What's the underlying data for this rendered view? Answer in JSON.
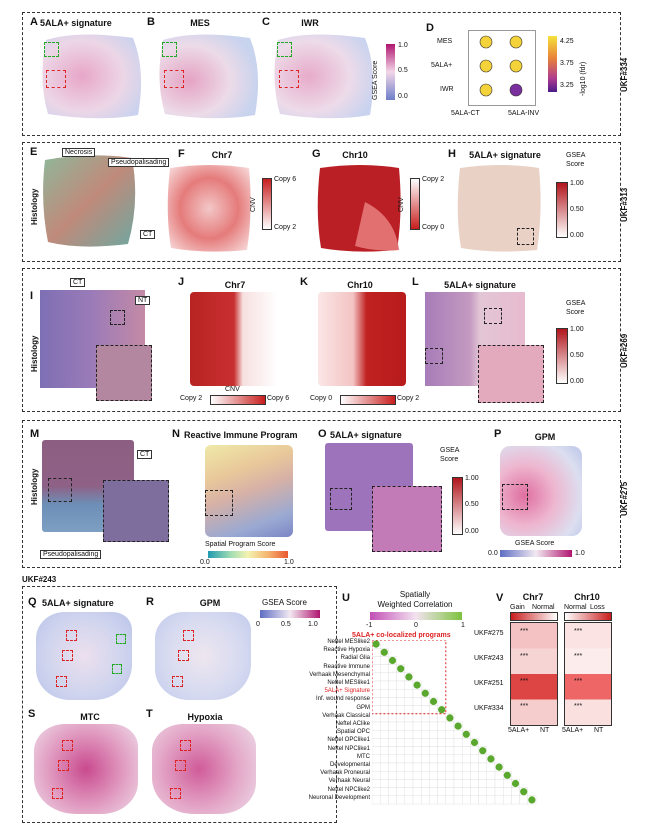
{
  "samples": {
    "a": "UKF#334",
    "b": "UKF#313",
    "c": "UKF#269",
    "d": "UKF#275",
    "e": "UKF#243"
  },
  "panels": {
    "A": "5ALA+ signature",
    "B": "MES",
    "C": "IWR",
    "D": "",
    "E": "",
    "F": "Chr7",
    "G": "Chr10",
    "H": "5ALA+ signature",
    "I": "",
    "J": "Chr7",
    "K": "Chr10",
    "L": "5ALA+ signature",
    "M": "",
    "N": "Reactive Immune Program",
    "O": "5ALA+ signature",
    "P": "GPM",
    "Q": "5ALA+ signature",
    "R": "GPM",
    "S": "MTC",
    "T": "Hypoxia",
    "U": "",
    "V": ""
  },
  "letters": [
    "A",
    "B",
    "C",
    "D",
    "E",
    "F",
    "G",
    "H",
    "I",
    "J",
    "K",
    "L",
    "M",
    "N",
    "O",
    "P",
    "Q",
    "R",
    "S",
    "T",
    "U",
    "V"
  ],
  "histology": "Histology",
  "callouts": {
    "necrosis": "Necrosis",
    "pseudo": "Pseudopalisading",
    "ct": "CT",
    "nt": "NT"
  },
  "legends": {
    "gsea_score": "GSEA Score",
    "gsea_score_2line": [
      "GSEA",
      "Score"
    ],
    "cnv": "CNV",
    "copy6": "Copy 6",
    "copy2": "Copy 2",
    "copy0": "Copy 0",
    "gsea_ticks": [
      "1.0",
      "0.5",
      "0.0"
    ],
    "gsea_ticks2": [
      "1.00",
      "0.50",
      "0.00"
    ],
    "spatial_program": "Spatial Program Score",
    "sp_ticks": [
      "0.0",
      "1.0"
    ],
    "gsea_ticks_h": [
      "0.0",
      "1.0"
    ],
    "gsea_ticks_q": [
      "0",
      "0.5",
      "1.0"
    ]
  },
  "dot": {
    "rows": [
      "MES",
      "5ALA+",
      "IWR"
    ],
    "cols": [
      "5ALA-CT",
      "5ALA-INV"
    ],
    "cbar_label": "-log10 (fdr)",
    "cbar_ticks": [
      "4.25",
      "3.75",
      "3.25"
    ],
    "values": [
      [
        4.2,
        4.2
      ],
      [
        4.2,
        4.1
      ],
      [
        4.1,
        3.2
      ]
    ]
  },
  "corr": {
    "title": [
      "Spatially",
      "Weighted Correlation"
    ],
    "ticks": [
      "-1",
      "0",
      "1"
    ],
    "group_label": "5ALA+ co-localized programs",
    "programs": [
      "Neftel MESlike2",
      "Reactive Hypoxia",
      "Radial Glia",
      "Reactive Immune",
      "Verhaak Mesenchymal",
      "Neftel MESlike1",
      "5ALA+ Signature",
      "Inf. wound response",
      "GPM",
      "Verhaak Classical",
      "Neftel AClike",
      "Spatial OPC",
      "Neftel OPClike1",
      "Neftel NPClike1",
      "MTC",
      "Developmental",
      "Verhaak Proneural",
      "Verhaak Neural",
      "Neftel NPClike2",
      "Neuronal Development"
    ],
    "highlight_index": 6
  },
  "cnv_panel": {
    "chr7": "Chr7",
    "chr10": "Chr10",
    "chr7_cols": [
      "Gain",
      "Normal"
    ],
    "chr10_cols": [
      "Normal",
      "Loss"
    ],
    "rows": [
      "UKF#275",
      "UKF#243",
      "UKF#251",
      "UKF#334"
    ],
    "xcats": [
      "5ALA+",
      "NT"
    ],
    "sig": "***"
  }
}
